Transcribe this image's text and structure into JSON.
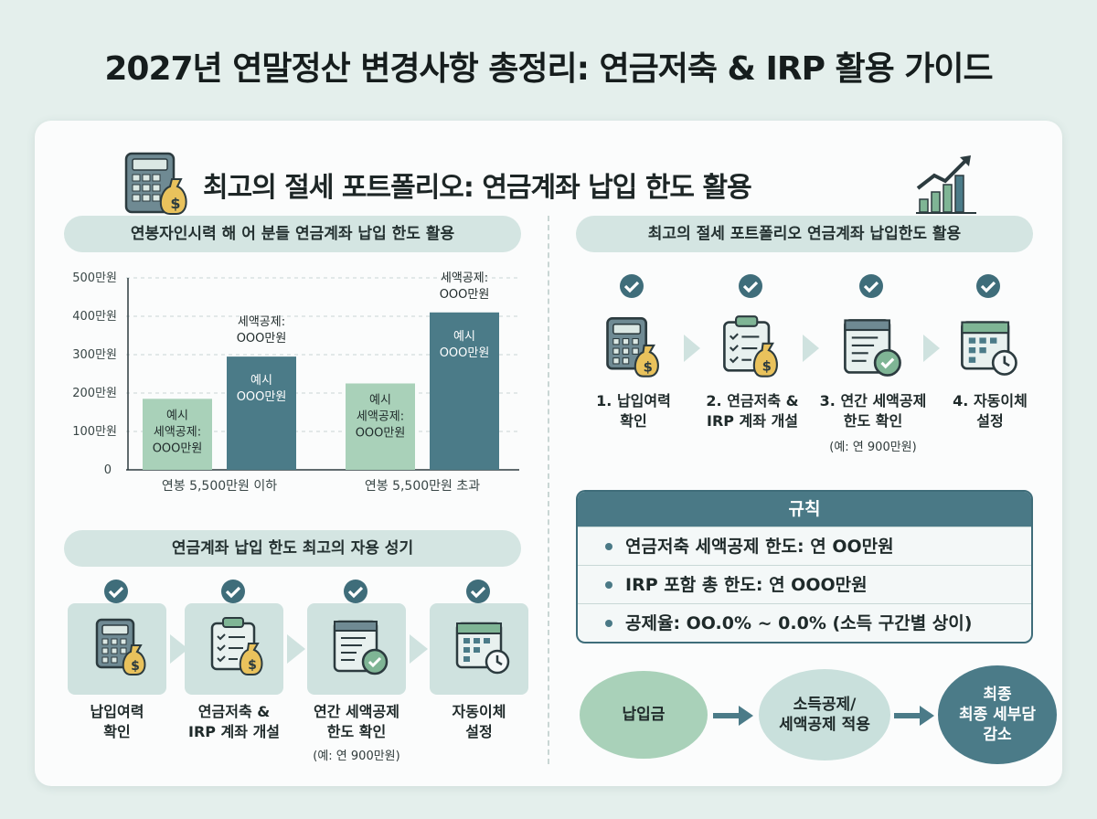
{
  "page": {
    "title": "2027년 연말정산 변경사항 총정리: 연금저축 & IRP 활용 가이드"
  },
  "card": {
    "title": "최고의 절세 포트폴리오: 연금계좌 납입 한도 활용"
  },
  "left": {
    "chart_pill": "연봉자인시력 해 어 분들 연금계좌 납입 한도 활용",
    "steps_pill": "연금계좌 납입 한도 최고의 자용 성기",
    "steps": [
      {
        "line1": "납입여력",
        "line2": "확인",
        "note": ""
      },
      {
        "line1": "연금저축 &",
        "line2": "IRP 계좌 개설",
        "note": ""
      },
      {
        "line1": "연간 세액공제",
        "line2": "한도 확인",
        "note": "(예: 연 900만원)"
      },
      {
        "line1": "자동이체",
        "line2": "설정",
        "note": ""
      }
    ]
  },
  "right": {
    "steps_pill": "최고의 절세 포트폴리오 연금계좌 납입한도 활용",
    "steps": [
      {
        "line1": "1. 납입여력",
        "line2": "확인",
        "note": ""
      },
      {
        "line1": "2. 연금저축 &",
        "line2": "IRP 계좌 개설",
        "note": ""
      },
      {
        "line1": "3. 연간 세액공제",
        "line2": "한도 확인",
        "note": "(예: 연 900만원)"
      },
      {
        "line1": "4. 자동이체",
        "line2": "설정",
        "note": ""
      }
    ],
    "rules": {
      "title": "규칙",
      "items": [
        "연금저축 세액공제 한도: 연 OO만원",
        "IRP 포함 총 한도: 연 OOO만원",
        "공제율: OO.0% ~ 0.0% (소득 구간별 상이)"
      ]
    },
    "flow": [
      {
        "line1": "납입금",
        "line2": ""
      },
      {
        "line1": "소득공제/",
        "line2": "세액공제 적용"
      },
      {
        "line1": "최종",
        "line2": "최종 세부담",
        "line3": "감소"
      }
    ]
  },
  "colors": {
    "bar_light": "#a9d1b9",
    "bar_dark": "#4b7b88",
    "accent": "#4a7986",
    "check": "#3f6d7a"
  },
  "chart_data": {
    "type": "bar",
    "y_ticks": [
      "0",
      "100만원",
      "200만원",
      "300만원",
      "400만원",
      "500만원"
    ],
    "ylim": [
      0,
      500
    ],
    "categories": [
      "연봉 5,500만원 이하",
      "연봉 5,500만원 초과"
    ],
    "series": [
      {
        "values": [
          185,
          225
        ],
        "labels": [
          "예시\n세액공제:\nOOO만원",
          "예시\n세액공제:\nOOO만원"
        ]
      },
      {
        "values": [
          295,
          410
        ],
        "labels": [
          "예시\nOOO만원",
          "예시\nOOO만원"
        ],
        "top_labels": [
          "세액공제:\nOOO만원",
          "세액공제:\nOOO만원"
        ]
      }
    ]
  }
}
